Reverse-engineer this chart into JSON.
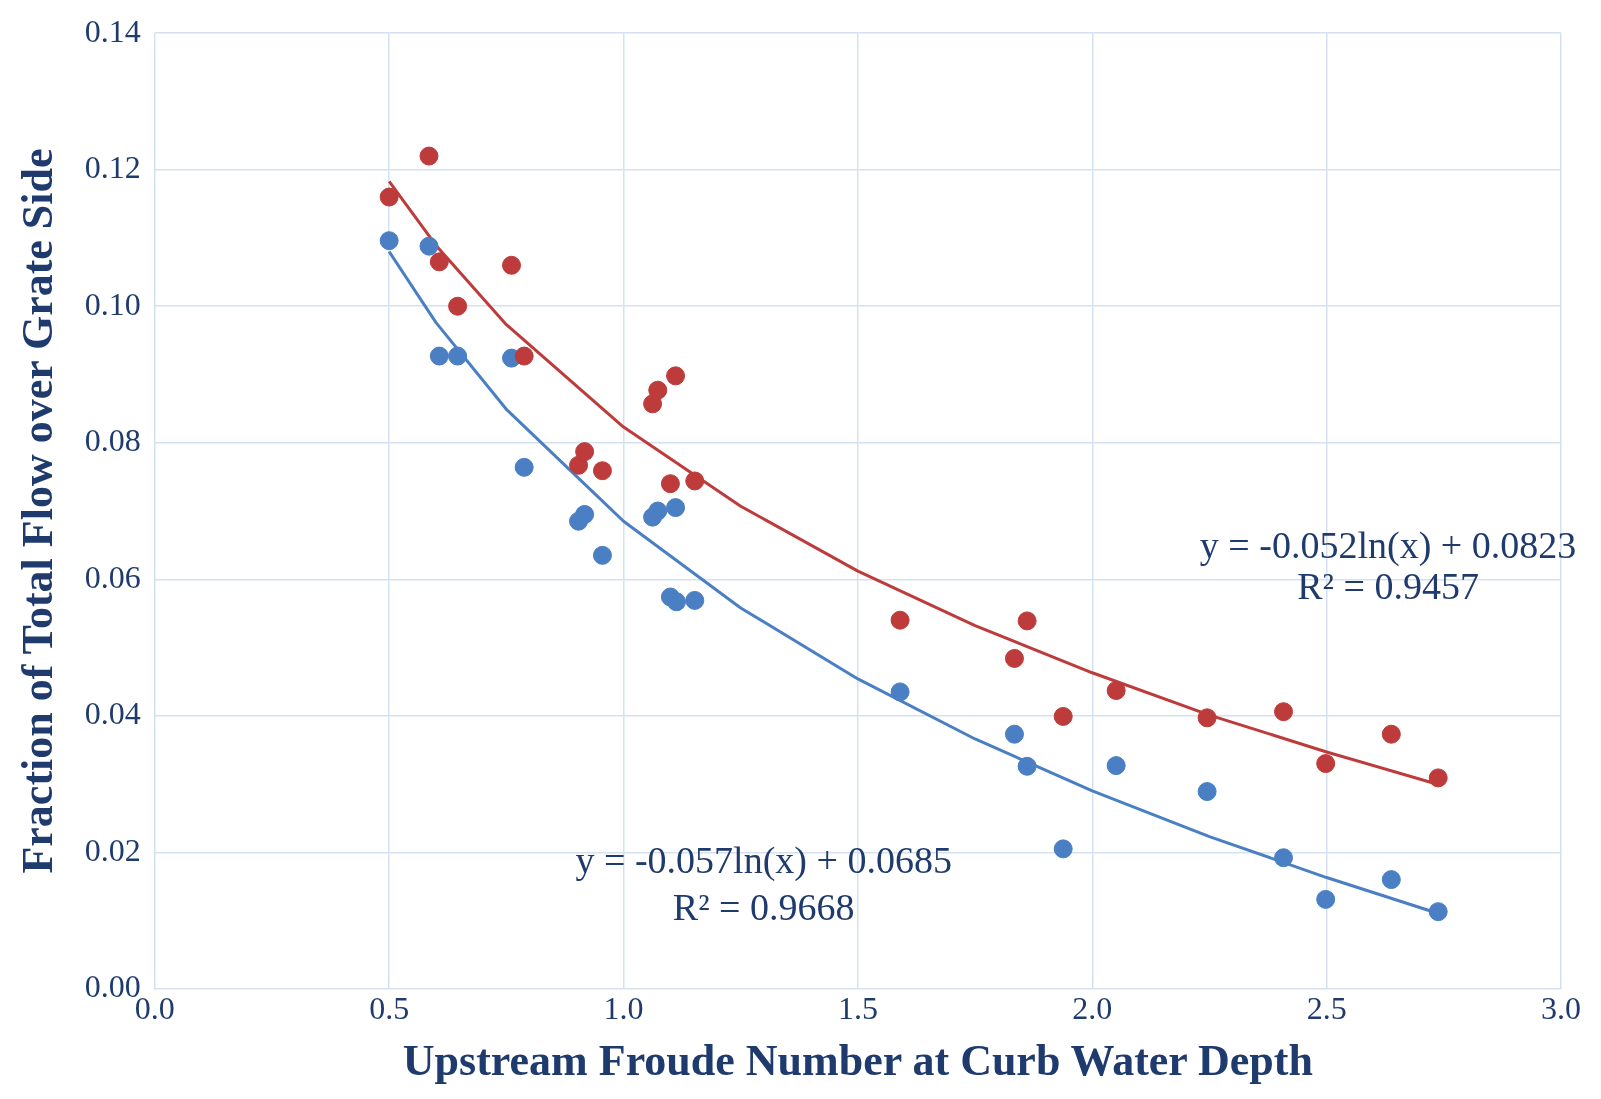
{
  "chart_data": {
    "type": "scatter",
    "xlabel": "Upstream Froude Number at Curb Water Depth",
    "ylabel": "Fraction of Total Flow over Grate Side",
    "xlim": [
      0,
      3
    ],
    "xticks": [
      {
        "value": 0,
        "label": "0.0"
      },
      {
        "value": 0.5,
        "label": "0.5"
      },
      {
        "value": 1,
        "label": "1.0"
      },
      {
        "value": 1.5,
        "label": "1.5"
      },
      {
        "value": 2,
        "label": "2.0"
      },
      {
        "value": 2.5,
        "label": "2.5"
      },
      {
        "value": 3,
        "label": "3.0"
      }
    ],
    "ylim": [
      0,
      0.14
    ],
    "yticks": [
      {
        "value": 0,
        "label": "0.00"
      },
      {
        "value": 0.02,
        "label": "0.02"
      },
      {
        "value": 0.04,
        "label": "0.04"
      },
      {
        "value": 0.06,
        "label": "0.06"
      },
      {
        "value": 0.08,
        "label": "0.08"
      },
      {
        "value": 0.1,
        "label": "0.10"
      },
      {
        "value": 0.12,
        "label": "0.12"
      },
      {
        "value": 0.14,
        "label": "0.14"
      }
    ],
    "grid": true,
    "marker": "circle",
    "series": [
      {
        "color": "#be3b3b",
        "x": [
          0.5,
          0.585,
          0.607,
          0.646,
          0.761,
          0.788,
          0.904,
          0.917,
          0.955,
          1.062,
          1.073,
          1.111,
          1.1,
          1.152,
          1.59,
          1.834,
          1.861,
          1.938,
          2.051,
          2.245,
          2.408,
          2.498,
          2.638,
          2.738
        ],
        "values": [
          0.116,
          0.122,
          0.1065,
          0.1,
          0.106,
          0.0927,
          0.0767,
          0.0787,
          0.0759,
          0.0857,
          0.0877,
          0.0898,
          0.074,
          0.0744,
          0.054,
          0.0484,
          0.0539,
          0.0399,
          0.0437,
          0.0397,
          0.0406,
          0.033,
          0.0373,
          0.0309
        ]
      },
      {
        "color": "#4a7fc4",
        "x": [
          0.5,
          0.585,
          0.607,
          0.646,
          0.761,
          0.788,
          0.904,
          0.917,
          0.955,
          1.062,
          1.073,
          1.111,
          1.1,
          1.113,
          1.152,
          1.59,
          1.834,
          1.861,
          1.938,
          2.051,
          2.245,
          2.408,
          2.498,
          2.638,
          2.738
        ],
        "values": [
          0.1096,
          0.1088,
          0.0927,
          0.0927,
          0.0924,
          0.0764,
          0.0685,
          0.0695,
          0.0635,
          0.0691,
          0.07,
          0.0705,
          0.0574,
          0.0567,
          0.0569,
          0.0435,
          0.0373,
          0.0326,
          0.0205,
          0.0327,
          0.0289,
          0.0192,
          0.0131,
          0.016,
          0.0113
        ]
      },
      {
        "type": "line",
        "marker": "none",
        "color": "#be3b3b",
        "x": [
          0.5,
          0.6,
          0.75,
          1,
          1.25,
          1.5,
          1.75,
          2,
          2.25,
          2.5,
          2.74
        ],
        "values": [
          0.1183,
          0.1089,
          0.0973,
          0.0823,
          0.0707,
          0.0612,
          0.0532,
          0.0463,
          0.0401,
          0.0347,
          0.0299
        ]
      },
      {
        "type": "line",
        "marker": "none",
        "color": "#4a7fc4",
        "x": [
          0.5,
          0.6,
          0.75,
          1,
          1.25,
          1.5,
          1.75,
          2,
          2.25,
          2.5,
          2.74
        ],
        "values": [
          0.108,
          0.0976,
          0.0849,
          0.0685,
          0.0558,
          0.0454,
          0.0366,
          0.029,
          0.0223,
          0.0163,
          0.011
        ]
      }
    ],
    "annotations": [
      "y = -0.052ln(x) + 0.0823",
      "R² = 0.9457",
      "y = -0.057ln(x) + 0.0685",
      "R² = 0.9668"
    ]
  }
}
